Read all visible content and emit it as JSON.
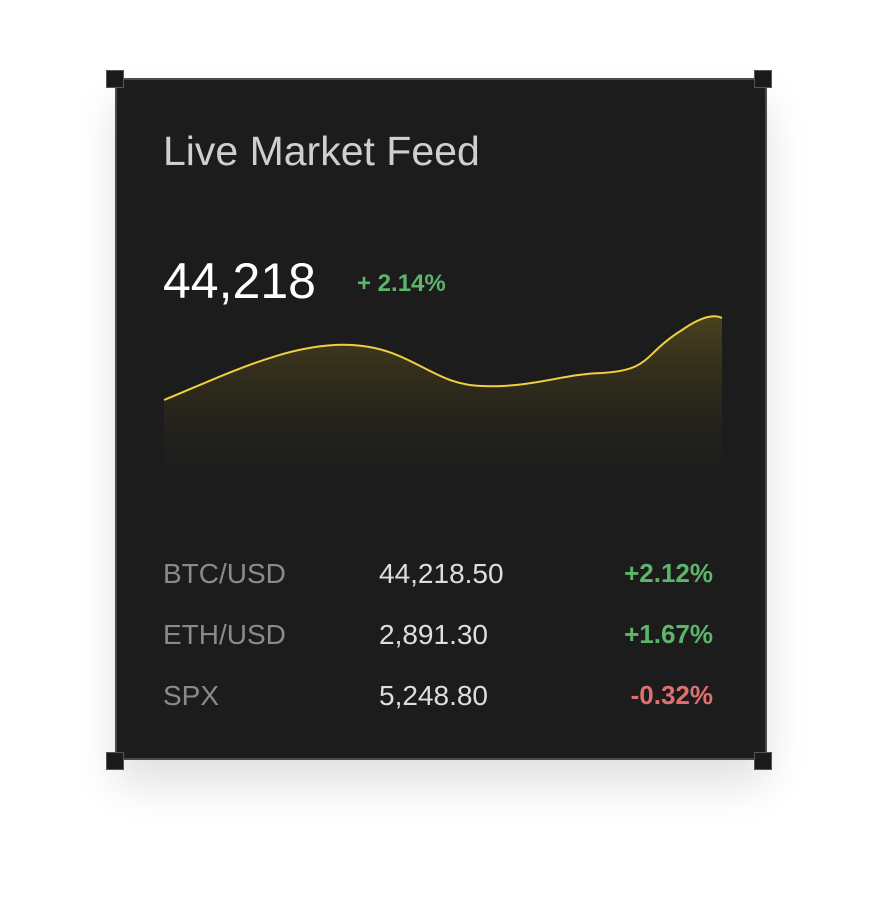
{
  "widget": {
    "title": "Live Market Feed",
    "price": "44,218",
    "change": "+ 2.14%",
    "rows": [
      [
        "BTC/USD",
        "44,218.50",
        "+2.12%"
      ],
      [
        "ETH/USD",
        "2,891.30",
        "+1.67%"
      ],
      [
        "SPX",
        "5,248.80",
        "-0.32%"
      ]
    ]
  }
}
